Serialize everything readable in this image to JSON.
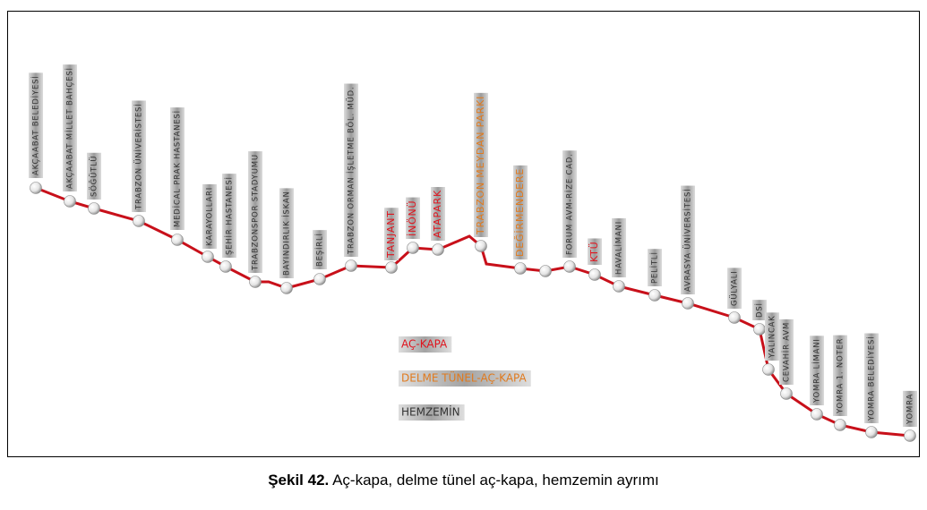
{
  "stations": [
    {
      "name": "AKÇAABAT BELEDİYESİ",
      "color": "#333333"
    },
    {
      "name": "AKÇAABAT MİLLET BAHÇESİ",
      "color": "#333333"
    },
    {
      "name": "SÖĞÜTLÜ",
      "color": "#333333"
    },
    {
      "name": "TRABZON ÜNİVERİSTESİ",
      "color": "#333333"
    },
    {
      "name": "MEDİCAL PRAK HASTANESİ",
      "color": "#333333"
    },
    {
      "name": "KARAYOLLARI",
      "color": "#333333"
    },
    {
      "name": "ŞEHİR HASTANESİ",
      "color": "#333333"
    },
    {
      "name": "TRABZONSPOR STADYUMU",
      "color": "#333333"
    },
    {
      "name": "BAYINDIRLIK İSKAN",
      "color": "#333333"
    },
    {
      "name": "BEŞİRLİ",
      "color": "#333333"
    },
    {
      "name": "TRABZON ORMAN İŞLETME BÖL. MÜD.",
      "color": "#333333"
    },
    {
      "name": "TANJANT",
      "color": "#e0141e"
    },
    {
      "name": "İNÖNÜ",
      "color": "#e0141e"
    },
    {
      "name": "ATAPARK",
      "color": "#e0141e"
    },
    {
      "name": "TRABZON MEYDAN PARKI",
      "color": "#e07a1e"
    },
    {
      "name": "DEĞİRMENDERE",
      "color": "#e07a1e"
    },
    {
      "name": "FORUM AVM-RİZE CAD.",
      "color": "#333333"
    },
    {
      "name": "KTÜ",
      "color": "#e0141e"
    },
    {
      "name": "HAVALİMANI",
      "color": "#333333"
    },
    {
      "name": "PELİTLİ",
      "color": "#333333"
    },
    {
      "name": "AVRASYA ÜNİVERSİTESİ",
      "color": "#333333"
    },
    {
      "name": "GÜLYALI",
      "color": "#333333"
    },
    {
      "name": "DSİ",
      "color": "#333333"
    },
    {
      "name": "YALINCAK",
      "color": "#333333"
    },
    {
      "name": "CEVAHİR AVM",
      "color": "#333333"
    },
    {
      "name": "YOMRA LİMANI",
      "color": "#333333"
    },
    {
      "name": "YOMRA 1. NOTER",
      "color": "#333333"
    },
    {
      "name": "YOMRA BELEDİYESİ",
      "color": "#333333"
    },
    {
      "name": "YOMRA",
      "color": "#333333"
    }
  ],
  "legend": [
    {
      "label": "AÇ-KAPA",
      "color": "#e0141e"
    },
    {
      "label": "DELME TÜNEL-AÇ-KAPA",
      "color": "#e07a1e"
    },
    {
      "label": "HEMZEMİN",
      "color": "#333333"
    }
  ],
  "caption": {
    "figure": "Şekil 42.",
    "text": "Aç-kapa, delme tünel aç-kapa, hemzemin ayrımı"
  }
}
